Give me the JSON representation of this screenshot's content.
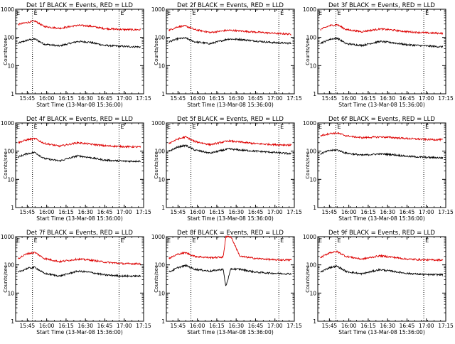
{
  "colors": {
    "events": "#000000",
    "lld": "#dd0000",
    "axes": "#000000"
  },
  "chart_data": [
    {
      "type": "line",
      "title": "Det 1f BLACK = Events, RED = LLD",
      "ylabel": "Counts/sec",
      "xlabel": "Start Time (13-Mar-08 15:36:00)",
      "ylim": [
        1,
        1000
      ],
      "yscale": "log",
      "xlim": [
        "15:36",
        "17:15"
      ],
      "xticks": [
        "15:45",
        "16:00",
        "16:15",
        "16:30",
        "16:45",
        "17:00",
        "17:15"
      ],
      "yticks": [
        "1",
        "10",
        "100",
        "1000"
      ],
      "markers": [
        "15:49",
        "16:56"
      ],
      "marker_label": "E",
      "series": [
        {
          "name": "BLACK = Events",
          "color": "#000000",
          "x": [
            "15:38",
            "15:45",
            "15:51",
            "15:58",
            "16:10",
            "16:24",
            "16:33",
            "16:45",
            "17:00",
            "17:13"
          ],
          "values": [
            62,
            80,
            88,
            58,
            50,
            72,
            68,
            52,
            48,
            46
          ]
        },
        {
          "name": "RED = LLD",
          "color": "#dd0000",
          "x": [
            "15:38",
            "15:45",
            "15:51",
            "15:58",
            "16:10",
            "16:24",
            "16:33",
            "16:45",
            "17:00",
            "17:13"
          ],
          "values": [
            290,
            340,
            380,
            245,
            210,
            270,
            255,
            205,
            190,
            188
          ]
        }
      ]
    },
    {
      "type": "line",
      "title": "Det 2f BLACK = Events, RED = LLD",
      "ylabel": "Counts/sec",
      "xlabel": "Start Time (13-Mar-08 15:36:00)",
      "ylim": [
        1,
        1000
      ],
      "yscale": "log",
      "xlim": [
        "15:36",
        "17:15"
      ],
      "xticks": [
        "15:45",
        "16:00",
        "16:15",
        "16:30",
        "16:45",
        "17:00",
        "17:15"
      ],
      "yticks": [
        "1",
        "10",
        "100",
        "1000"
      ],
      "markers": [
        "15:55",
        "17:03"
      ],
      "marker_label": "E",
      "series": [
        {
          "name": "BLACK = Events",
          "color": "#000000",
          "x": [
            "15:38",
            "15:45",
            "15:51",
            "15:58",
            "16:10",
            "16:24",
            "16:33",
            "16:45",
            "17:00",
            "17:13"
          ],
          "values": [
            70,
            90,
            95,
            70,
            60,
            88,
            85,
            75,
            65,
            62
          ]
        },
        {
          "name": "RED = LLD",
          "color": "#dd0000",
          "x": [
            "15:38",
            "15:45",
            "15:51",
            "15:58",
            "16:10",
            "16:24",
            "16:33",
            "16:45",
            "17:00",
            "17:13"
          ],
          "values": [
            180,
            240,
            255,
            190,
            150,
            180,
            170,
            155,
            140,
            130
          ]
        }
      ]
    },
    {
      "type": "line",
      "title": "Det 3f BLACK = Events, RED = LLD",
      "ylabel": "Counts/sec",
      "xlabel": "Start Time (13-Mar-08 15:36:00)",
      "ylim": [
        1,
        1000
      ],
      "yscale": "log",
      "xlim": [
        "15:36",
        "17:15"
      ],
      "xticks": [
        "15:45",
        "16:00",
        "16:15",
        "16:30",
        "16:45",
        "17:00",
        "17:15"
      ],
      "yticks": [
        "1",
        "10",
        "100",
        "1000"
      ],
      "markers": [
        "15:50",
        "16:58"
      ],
      "marker_label": "E",
      "series": [
        {
          "name": "BLACK = Events",
          "color": "#000000",
          "x": [
            "15:38",
            "15:45",
            "15:51",
            "15:58",
            "16:10",
            "16:24",
            "16:33",
            "16:45",
            "17:00",
            "17:13"
          ],
          "values": [
            62,
            85,
            95,
            60,
            52,
            72,
            66,
            55,
            50,
            46
          ]
        },
        {
          "name": "RED = LLD",
          "color": "#dd0000",
          "x": [
            "15:38",
            "15:45",
            "15:51",
            "15:58",
            "16:10",
            "16:24",
            "16:33",
            "16:45",
            "17:00",
            "17:13"
          ],
          "values": [
            190,
            260,
            285,
            190,
            160,
            200,
            185,
            160,
            145,
            140
          ]
        }
      ]
    },
    {
      "type": "line",
      "title": "Det 4f BLACK = Events, RED = LLD",
      "ylabel": "Counts/sec",
      "xlabel": "Start Time (13-Mar-08 15:36:00)",
      "ylim": [
        1,
        1000
      ],
      "yscale": "log",
      "xlim": [
        "15:36",
        "17:15"
      ],
      "xticks": [
        "15:45",
        "16:00",
        "16:15",
        "16:30",
        "16:45",
        "17:00",
        "17:15"
      ],
      "yticks": [
        "1",
        "10",
        "100",
        "1000"
      ],
      "markers": [
        "15:49",
        "16:56"
      ],
      "marker_label": "E",
      "series": [
        {
          "name": "BLACK = Events",
          "color": "#000000",
          "x": [
            "15:38",
            "15:45",
            "15:51",
            "15:58",
            "16:10",
            "16:24",
            "16:33",
            "16:45",
            "17:00",
            "17:13"
          ],
          "values": [
            62,
            82,
            90,
            55,
            45,
            68,
            60,
            48,
            44,
            44
          ]
        },
        {
          "name": "RED = LLD",
          "color": "#dd0000",
          "x": [
            "15:38",
            "15:45",
            "15:51",
            "15:58",
            "16:10",
            "16:24",
            "16:33",
            "16:45",
            "17:00",
            "17:13"
          ],
          "values": [
            200,
            255,
            280,
            190,
            150,
            200,
            180,
            155,
            145,
            140
          ]
        }
      ]
    },
    {
      "type": "line",
      "title": "Det 5f BLACK = Events, RED = LLD",
      "ylabel": "Counts/sec",
      "xlabel": "Start Time (13-Mar-08 15:36:00)",
      "ylim": [
        1,
        1000
      ],
      "yscale": "log",
      "xlim": [
        "15:36",
        "17:15"
      ],
      "xticks": [
        "15:45",
        "16:00",
        "16:15",
        "16:30",
        "16:45",
        "17:00",
        "17:15"
      ],
      "yticks": [
        "1",
        "10",
        "100",
        "1000"
      ],
      "markers": [
        "15:55",
        "17:03"
      ],
      "marker_label": "E",
      "series": [
        {
          "name": "BLACK = Events",
          "color": "#000000",
          "x": [
            "15:38",
            "15:45",
            "15:51",
            "15:58",
            "16:10",
            "16:24",
            "16:33",
            "16:45",
            "17:00",
            "17:13"
          ],
          "values": [
            100,
            140,
            160,
            110,
            85,
            120,
            110,
            100,
            90,
            80
          ]
        },
        {
          "name": "RED = LLD",
          "color": "#dd0000",
          "x": [
            "15:38",
            "15:45",
            "15:51",
            "15:58",
            "16:10",
            "16:24",
            "16:33",
            "16:45",
            "17:00",
            "17:13"
          ],
          "values": [
            190,
            270,
            320,
            220,
            170,
            230,
            210,
            185,
            170,
            165
          ]
        }
      ]
    },
    {
      "type": "line",
      "title": "Det 6f BLACK = Events, RED = LLD",
      "ylabel": "Counts/sec",
      "xlabel": "Start Time (13-Mar-08 15:36:00)",
      "ylim": [
        1,
        1000
      ],
      "yscale": "log",
      "xlim": [
        "15:36",
        "17:15"
      ],
      "xticks": [
        "15:45",
        "16:00",
        "16:15",
        "16:30",
        "16:45",
        "17:00",
        "17:15"
      ],
      "yticks": [
        "1",
        "10",
        "100",
        "1000"
      ],
      "markers": [
        "15:50",
        "16:58"
      ],
      "marker_label": "E",
      "series": [
        {
          "name": "BLACK = Events",
          "color": "#000000",
          "x": [
            "15:38",
            "15:45",
            "15:51",
            "15:58",
            "16:10",
            "16:24",
            "16:33",
            "16:45",
            "17:00",
            "17:13"
          ],
          "values": [
            80,
            105,
            110,
            85,
            72,
            80,
            76,
            66,
            60,
            58
          ]
        },
        {
          "name": "RED = LLD",
          "color": "#dd0000",
          "x": [
            "15:38",
            "15:45",
            "15:51",
            "15:58",
            "16:10",
            "16:24",
            "16:33",
            "16:45",
            "17:00",
            "17:13"
          ],
          "values": [
            350,
            420,
            440,
            350,
            300,
            320,
            305,
            280,
            260,
            255
          ]
        }
      ]
    },
    {
      "type": "line",
      "title": "Det 7f BLACK = Events, RED = LLD",
      "ylabel": "Counts/sec",
      "xlabel": "Start Time (13-Mar-08 15:36:00)",
      "ylim": [
        1,
        1000
      ],
      "yscale": "log",
      "xlim": [
        "15:36",
        "17:15"
      ],
      "xticks": [
        "15:45",
        "16:00",
        "16:15",
        "16:30",
        "16:45",
        "17:00",
        "17:15"
      ],
      "yticks": [
        "1",
        "10",
        "100",
        "1000"
      ],
      "markers": [
        "15:49",
        "16:56"
      ],
      "marker_label": "E",
      "series": [
        {
          "name": "BLACK = Events",
          "color": "#000000",
          "x": [
            "15:38",
            "15:45",
            "15:51",
            "15:58",
            "16:10",
            "16:24",
            "16:33",
            "16:45",
            "17:00",
            "17:13"
          ],
          "values": [
            55,
            75,
            82,
            50,
            40,
            60,
            55,
            44,
            40,
            40
          ]
        },
        {
          "name": "RED = LLD",
          "color": "#dd0000",
          "x": [
            "15:38",
            "15:45",
            "15:51",
            "15:58",
            "16:10",
            "16:24",
            "16:33",
            "16:45",
            "17:00",
            "17:13"
          ],
          "values": [
            170,
            250,
            275,
            170,
            130,
            160,
            150,
            125,
            110,
            110
          ]
        }
      ]
    },
    {
      "type": "line",
      "title": "Det 8f BLACK = Events, RED = LLD",
      "ylabel": "Counts/sec",
      "xlabel": "Start Time (13-Mar-08 15:36:00)",
      "ylim": [
        1,
        1000
      ],
      "yscale": "log",
      "xlim": [
        "15:36",
        "17:15"
      ],
      "xticks": [
        "15:45",
        "16:00",
        "16:15",
        "16:30",
        "16:45",
        "17:00",
        "17:15"
      ],
      "yticks": [
        "1",
        "10",
        "100",
        "1000"
      ],
      "markers": [
        "15:55",
        "17:03"
      ],
      "marker_label": "E",
      "series": [
        {
          "name": "BLACK = Events",
          "color": "#000000",
          "x": [
            "15:38",
            "15:45",
            "15:51",
            "15:58",
            "16:10",
            "16:20",
            "16:22",
            "16:26",
            "16:33",
            "16:45",
            "17:00",
            "17:13"
          ],
          "values": [
            55,
            80,
            95,
            70,
            60,
            70,
            17,
            72,
            70,
            55,
            50,
            48
          ]
        },
        {
          "name": "RED = LLD",
          "color": "#dd0000",
          "x": [
            "15:38",
            "15:45",
            "15:51",
            "15:58",
            "16:10",
            "16:20",
            "16:22",
            "16:26",
            "16:33",
            "16:45",
            "17:00",
            "17:13"
          ],
          "values": [
            170,
            240,
            270,
            200,
            180,
            190,
            1000,
            1000,
            200,
            170,
            150,
            150
          ]
        }
      ]
    },
    {
      "type": "line",
      "title": "Det 9f BLACK = Events, RED = LLD",
      "ylabel": "Counts/sec",
      "xlabel": "Start Time (13-Mar-08 15:36:00)",
      "ylim": [
        1,
        1000
      ],
      "yscale": "log",
      "xlim": [
        "15:36",
        "17:15"
      ],
      "xticks": [
        "15:45",
        "16:00",
        "16:15",
        "16:30",
        "16:45",
        "17:00",
        "17:15"
      ],
      "yticks": [
        "1",
        "10",
        "100",
        "1000"
      ],
      "markers": [
        "15:50",
        "16:58"
      ],
      "marker_label": "E",
      "series": [
        {
          "name": "BLACK = Events",
          "color": "#000000",
          "x": [
            "15:38",
            "15:45",
            "15:51",
            "15:58",
            "16:10",
            "16:24",
            "16:33",
            "16:45",
            "17:00",
            "17:13"
          ],
          "values": [
            55,
            80,
            90,
            58,
            48,
            68,
            60,
            50,
            45,
            45
          ]
        },
        {
          "name": "RED = LLD",
          "color": "#dd0000",
          "x": [
            "15:38",
            "15:45",
            "15:51",
            "15:58",
            "16:10",
            "16:24",
            "16:33",
            "16:45",
            "17:00",
            "17:13"
          ],
          "values": [
            180,
            270,
            295,
            200,
            160,
            210,
            190,
            160,
            150,
            150
          ]
        }
      ]
    }
  ]
}
